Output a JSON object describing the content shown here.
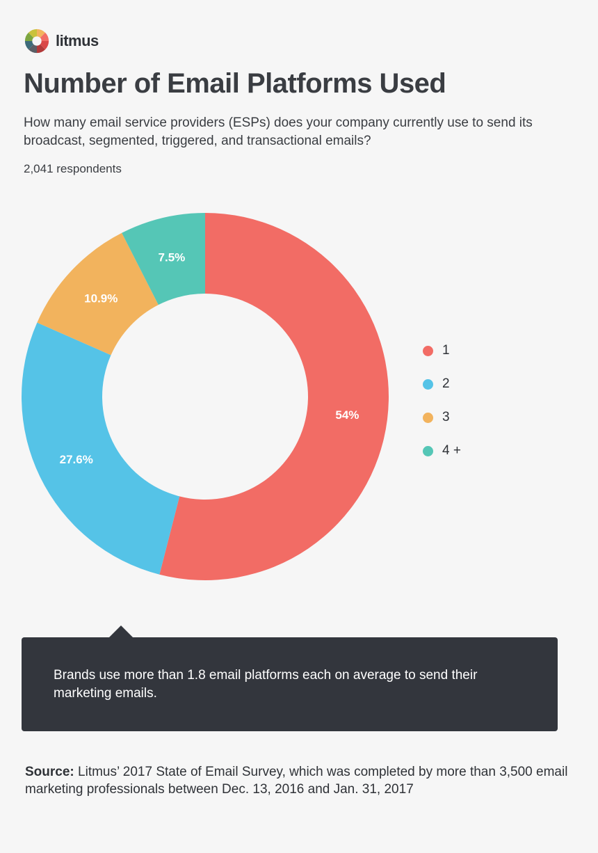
{
  "logo": {
    "text": "litmus"
  },
  "header": {
    "title": "Number of Email Platforms Used",
    "subtitle": "How many email service providers (ESPs) does your company currently use to send its broadcast, segmented, triggered, and transactional emails?",
    "respondents": "2,041 respondents"
  },
  "chart_data": {
    "type": "pie",
    "categories": [
      "1",
      "2",
      "3",
      "4 +"
    ],
    "values": [
      54,
      27.6,
      10.9,
      7.5
    ],
    "labels": [
      "54%",
      "27.6%",
      "10.9%",
      "7.5%"
    ],
    "colors": [
      "#f26c65",
      "#55c3e7",
      "#f2b35d",
      "#55c6b6"
    ],
    "legend_position": "right"
  },
  "callout": {
    "text": "Brands use more than 1.8 email platforms each on average to send their marketing emails."
  },
  "source": {
    "label": "Source:",
    "text": " Litmus’ 2017 State of Email Survey, which was completed by more than 3,500 email marketing professionals between Dec. 13, 2016 and Jan. 31, 2017"
  }
}
